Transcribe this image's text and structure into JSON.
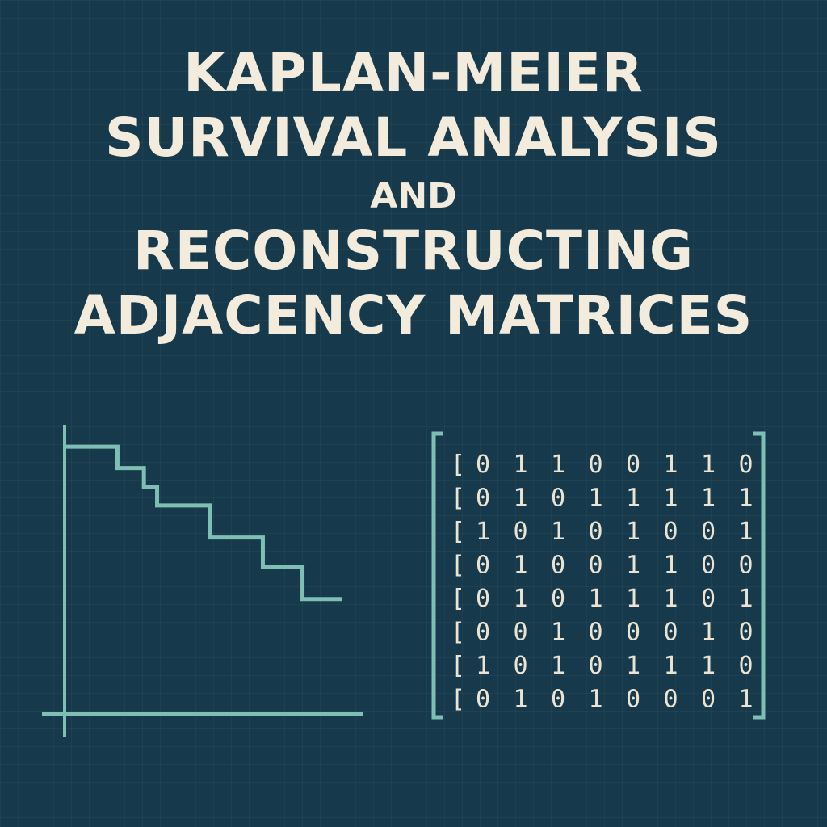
{
  "title": {
    "line1": "KAPLAN-MEIER",
    "line2": "SURVIVAL ANALYSIS",
    "line3": "AND",
    "line4": "RECONSTRUCTING",
    "line5": "ADJACENCY MATRICES"
  },
  "colors": {
    "background": "#163a4c",
    "text": "#f3ecdc",
    "accent": "#7fbfb3"
  },
  "survival_curve": {
    "type": "step",
    "steps": [
      {
        "t": 0,
        "s": 1.0
      },
      {
        "t": 2,
        "s": 0.92
      },
      {
        "t": 3,
        "s": 0.85
      },
      {
        "t": 3.5,
        "s": 0.78
      },
      {
        "t": 5.5,
        "s": 0.66
      },
      {
        "t": 7.5,
        "s": 0.55
      },
      {
        "t": 9,
        "s": 0.43
      },
      {
        "t": 10.5,
        "s": 0.43
      }
    ],
    "xlim": [
      0,
      11
    ],
    "ylim": [
      0,
      1.1
    ]
  },
  "matrix": {
    "rows": [
      [
        "0",
        "1",
        "1",
        "0",
        "0",
        "1",
        "1",
        "0"
      ],
      [
        "0",
        "1",
        "0",
        "1",
        "1",
        "1",
        "1",
        "1"
      ],
      [
        "1",
        "0",
        "1",
        "0",
        "1",
        "0",
        "0",
        "1"
      ],
      [
        "0",
        "1",
        "0",
        "0",
        "1",
        "1",
        "0",
        "0"
      ],
      [
        "0",
        "1",
        "0",
        "1",
        "1",
        "1",
        "0",
        "1"
      ],
      [
        "0",
        "0",
        "1",
        "0",
        "0",
        "0",
        "1",
        "0"
      ],
      [
        "1",
        "0",
        "1",
        "0",
        "1",
        "1",
        "1",
        "0"
      ],
      [
        "0",
        "1",
        "0",
        "1",
        "0",
        "0",
        "0",
        "1"
      ]
    ],
    "row_open_bracket": "["
  }
}
